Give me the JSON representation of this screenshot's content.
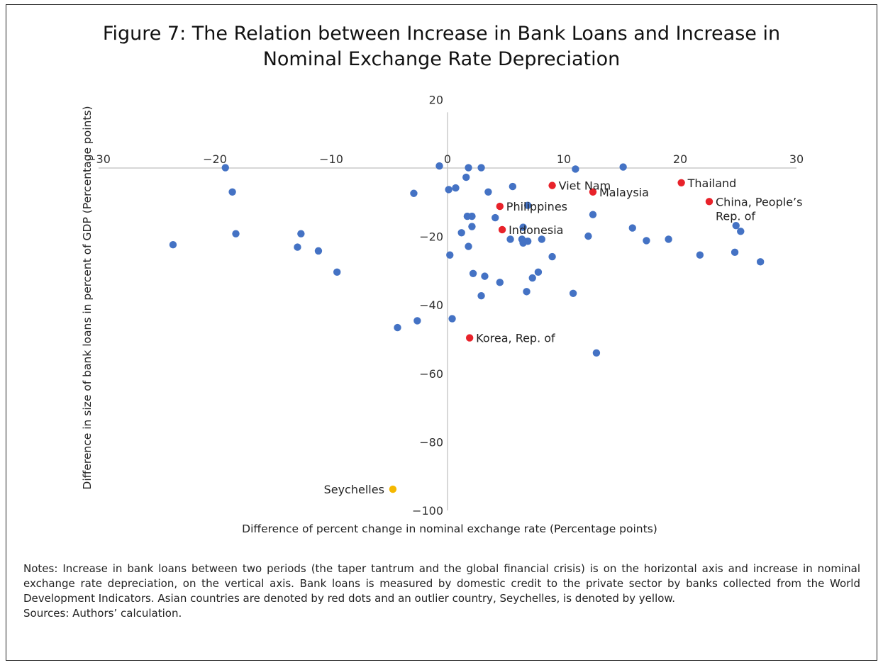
{
  "title_line1": "Figure 7: The Relation between Increase in Bank Loans and Increase in",
  "title_line2": "Nominal Exchange Rate Depreciation",
  "notes": "Notes: Increase in bank loans between two periods (the taper tantrum and the global financial crisis) is on the horizontal axis and increase in nominal exchange rate depreciation, on the vertical axis. Bank loans is measured by domestic credit to the private sector by banks collected from the World Development Indicators. Asian countries are denoted by red dots and an outlier country, Seychelles, is denoted by yellow.",
  "sources": "Sources: Authors’ calculation.",
  "colors": {
    "other": "#4472C4",
    "asian": "#E8222A",
    "outlier": "#F5B800"
  },
  "chart_data": {
    "type": "scatter",
    "title": "Figure 7: The Relation between Increase in Bank Loans and Increase in Nominal Exchange Rate Depreciation",
    "xlabel": "Difference of percent change in nominal exchange rate (Percentage points)",
    "ylabel": "Difference in size of bank loans in percent of GDP (Percentage points)",
    "xlim": [
      -30,
      30
    ],
    "ylim": [
      -100,
      20
    ],
    "xticks": [
      "−30",
      "−20",
      "−10",
      "0",
      "10",
      "20",
      "30"
    ],
    "xtick_values": [
      -30,
      -20,
      -10,
      0,
      10,
      20,
      30
    ],
    "yticks": [
      "20",
      "−20",
      "−40",
      "−60",
      "−80",
      "−100"
    ],
    "ytick_values": [
      20,
      -20,
      -40,
      -60,
      -80,
      -100
    ],
    "grid": false,
    "legend": "none",
    "series": [
      {
        "group": "other",
        "points": [
          [
            -19.1,
            0.1
          ],
          [
            -18.5,
            -7.0
          ],
          [
            -18.2,
            -19.2
          ],
          [
            -23.6,
            -22.4
          ],
          [
            -12.6,
            -19.2
          ],
          [
            -12.9,
            -23.1
          ],
          [
            -11.1,
            -24.2
          ],
          [
            -9.5,
            -30.4
          ],
          [
            -4.3,
            -46.6
          ],
          [
            -2.6,
            -44.6
          ],
          [
            -2.9,
            -7.4
          ],
          [
            -0.7,
            0.6
          ],
          [
            0.1,
            -6.3
          ],
          [
            0.2,
            -25.4
          ],
          [
            0.4,
            -44.0
          ],
          [
            0.7,
            -5.8
          ],
          [
            1.2,
            -18.9
          ],
          [
            1.6,
            -2.7
          ],
          [
            1.7,
            -14.1
          ],
          [
            1.8,
            -22.9
          ],
          [
            1.8,
            0.1
          ],
          [
            2.1,
            -14.1
          ],
          [
            2.1,
            -17.1
          ],
          [
            2.2,
            -30.8
          ],
          [
            2.9,
            0.1
          ],
          [
            2.9,
            -37.3
          ],
          [
            3.2,
            -31.6
          ],
          [
            3.5,
            -7.0
          ],
          [
            4.1,
            -14.5
          ],
          [
            4.5,
            -33.4
          ],
          [
            5.4,
            -20.8
          ],
          [
            5.6,
            -5.4
          ],
          [
            6.4,
            -20.8
          ],
          [
            6.5,
            -17.3
          ],
          [
            6.5,
            -21.9
          ],
          [
            6.8,
            -36.1
          ],
          [
            6.9,
            -21.4
          ],
          [
            6.9,
            -10.9
          ],
          [
            7.3,
            -32.1
          ],
          [
            7.8,
            -30.4
          ],
          [
            8.1,
            -20.8
          ],
          [
            9.0,
            -25.9
          ],
          [
            10.8,
            -36.6
          ],
          [
            11.0,
            -0.3
          ],
          [
            12.1,
            -19.9
          ],
          [
            12.5,
            -13.6
          ],
          [
            12.8,
            -54.0
          ],
          [
            15.1,
            0.3
          ],
          [
            15.9,
            -17.5
          ],
          [
            17.1,
            -21.2
          ],
          [
            19.0,
            -20.8
          ],
          [
            21.7,
            -25.4
          ],
          [
            24.7,
            -24.6
          ],
          [
            24.8,
            -16.8
          ],
          [
            25.2,
            -18.5
          ],
          [
            26.9,
            -27.4
          ]
        ]
      },
      {
        "group": "asian",
        "points": [
          {
            "name": "Viet Nam",
            "x": 9.0,
            "y": -5.1
          },
          {
            "name": "Malaysia",
            "x": 12.5,
            "y": -7.0
          },
          {
            "name": "Thailand",
            "x": 20.1,
            "y": -4.3
          },
          {
            "name": "China, People’s Rep. of",
            "x": 22.5,
            "y": -9.8
          },
          {
            "name": "Philippines",
            "x": 4.5,
            "y": -11.2
          },
          {
            "name": "Indonesia",
            "x": 4.7,
            "y": -18.0
          },
          {
            "name": "Korea, Rep. of",
            "x": 1.9,
            "y": -49.6
          }
        ]
      },
      {
        "group": "outlier",
        "points": [
          {
            "name": "Seychelles",
            "x": -4.7,
            "y": -93.8
          }
        ]
      }
    ]
  }
}
